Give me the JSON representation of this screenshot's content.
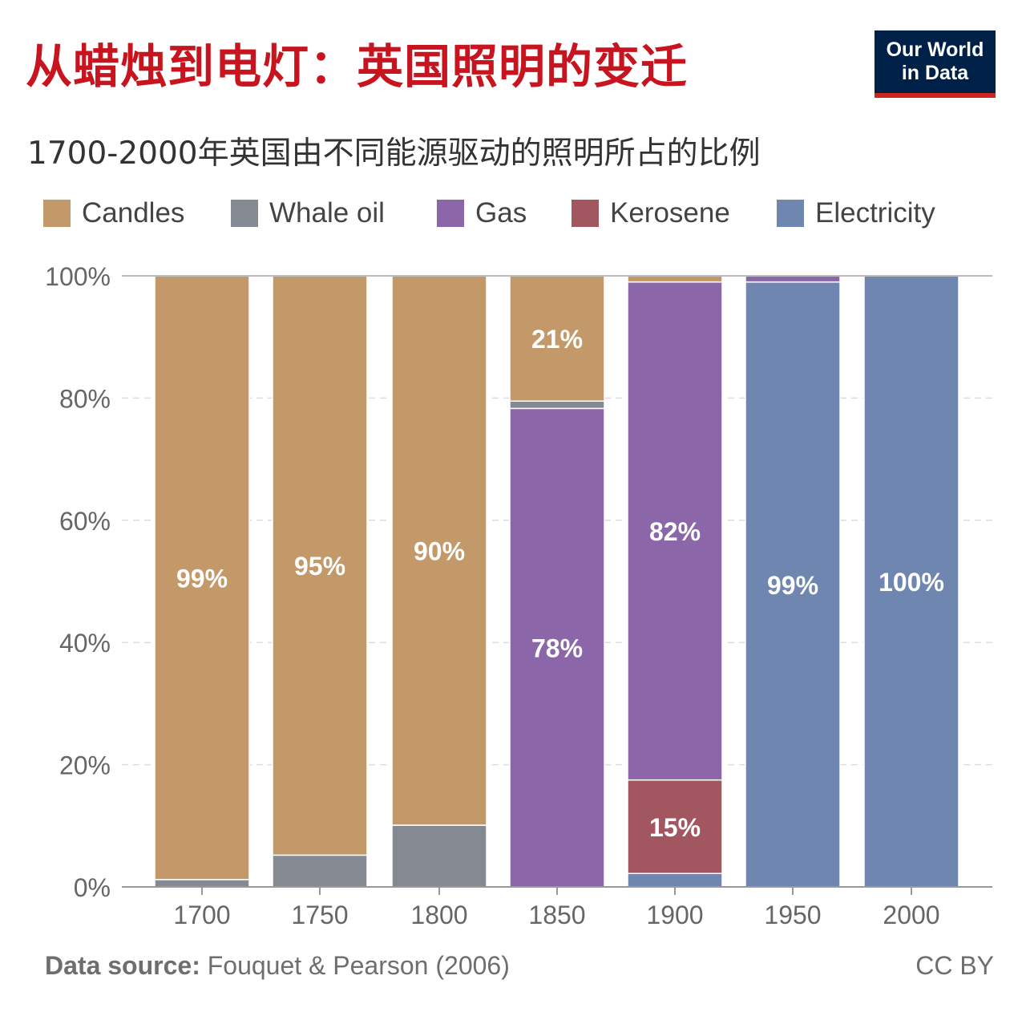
{
  "header": {
    "title": "从蜡烛到电灯：英国照明的变迁",
    "subtitle": "1700-2000年英国由不同能源驱动的照明所占的比例",
    "logo_line1": "Our World",
    "logo_line2": "in Data"
  },
  "footer": {
    "source_label": "Data source:",
    "source_text": "Fouquet & Pearson (2006)",
    "license": "CC BY"
  },
  "chart_data": {
    "type": "bar",
    "stacked": true,
    "categories": [
      "1700",
      "1750",
      "1800",
      "1850",
      "1900",
      "1950",
      "2000"
    ],
    "ylim": [
      0,
      100
    ],
    "yticks": [
      0,
      20,
      40,
      60,
      80,
      100
    ],
    "ytick_labels": [
      "0%",
      "20%",
      "40%",
      "60%",
      "80%",
      "100%"
    ],
    "grid": true,
    "legend_position": "top",
    "series": [
      {
        "name": "Electricity",
        "color": "#6f87b0",
        "values": [
          0,
          0,
          0,
          0,
          2.2,
          99,
          100
        ]
      },
      {
        "name": "Kerosene",
        "color": "#a25660",
        "values": [
          0,
          0,
          0,
          0,
          15.3,
          0,
          0
        ]
      },
      {
        "name": "Gas",
        "color": "#8b66a8",
        "values": [
          0,
          0,
          0,
          78.3,
          81.5,
          1,
          0
        ]
      },
      {
        "name": "Whale oil",
        "color": "#858a92",
        "values": [
          1.2,
          5.2,
          10.1,
          1.2,
          0,
          0,
          0
        ]
      },
      {
        "name": "Candles",
        "color": "#c3996a",
        "values": [
          98.8,
          94.8,
          89.9,
          20.5,
          1,
          0,
          0
        ]
      }
    ],
    "legend_order": [
      "Candles",
      "Whale oil",
      "Gas",
      "Kerosene",
      "Electricity"
    ],
    "data_labels": [
      {
        "category": "1700",
        "series": "Candles",
        "text": "99%"
      },
      {
        "category": "1750",
        "series": "Candles",
        "text": "95%"
      },
      {
        "category": "1800",
        "series": "Candles",
        "text": "90%"
      },
      {
        "category": "1850",
        "series": "Candles",
        "text": "21%"
      },
      {
        "category": "1850",
        "series": "Gas",
        "text": "78%"
      },
      {
        "category": "1900",
        "series": "Gas",
        "text": "82%"
      },
      {
        "category": "1900",
        "series": "Kerosene",
        "text": "15%"
      },
      {
        "category": "1950",
        "series": "Electricity",
        "text": "99%"
      },
      {
        "category": "2000",
        "series": "Electricity",
        "text": "100%"
      }
    ]
  }
}
